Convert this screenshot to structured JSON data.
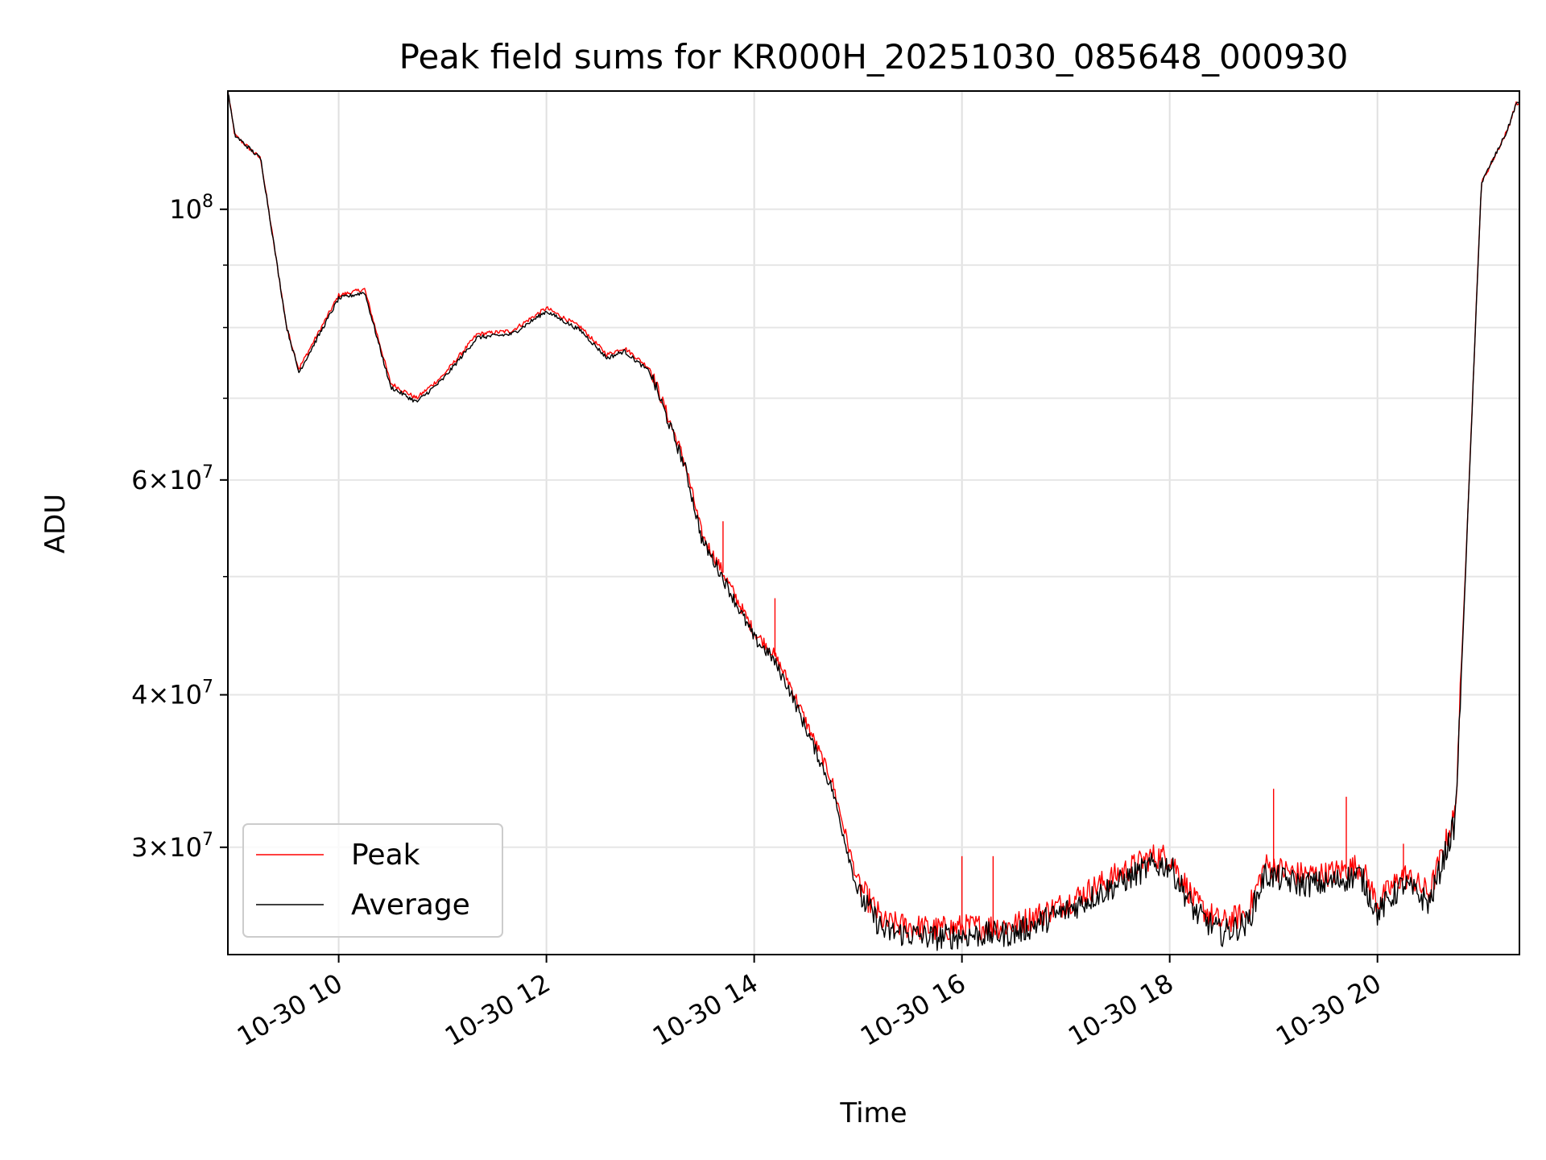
{
  "chart_data": {
    "type": "line",
    "title": "Peak field sums for KR000H_20251030_085648_000930",
    "xlabel": "Time",
    "ylabel": "ADU",
    "yscale": "log",
    "xlim": [
      "2025-10-30 08:56",
      "2025-10-30 21:22"
    ],
    "ylim": [
      24500000,
      125000000
    ],
    "grid": true,
    "legend_position": "lower-left",
    "x_ticks": [
      "10-30 10",
      "10-30 12",
      "10-30 14",
      "10-30 16",
      "10-30 18",
      "10-30 20"
    ],
    "y_ticks": [
      {
        "value": 30000000,
        "mantissa": "3",
        "exp": "7"
      },
      {
        "value": 40000000,
        "mantissa": "4",
        "exp": "7"
      },
      {
        "value": 60000000,
        "mantissa": "6",
        "exp": "7"
      },
      {
        "value": 100000000,
        "mantissa": "",
        "exp": "8"
      }
    ],
    "x": [
      "2025-10-30 08:56",
      "2025-10-30 09:00",
      "2025-10-30 09:15",
      "2025-10-30 09:30",
      "2025-10-30 09:37",
      "2025-10-30 10:00",
      "2025-10-30 10:15",
      "2025-10-30 10:30",
      "2025-10-30 10:45",
      "2025-10-30 11:00",
      "2025-10-30 11:20",
      "2025-10-30 11:40",
      "2025-10-30 12:00",
      "2025-10-30 12:20",
      "2025-10-30 12:35",
      "2025-10-30 12:45",
      "2025-10-30 13:00",
      "2025-10-30 13:20",
      "2025-10-30 13:30",
      "2025-10-30 13:40",
      "2025-10-30 14:00",
      "2025-10-30 14:10",
      "2025-10-30 14:20",
      "2025-10-30 14:30",
      "2025-10-30 14:45",
      "2025-10-30 15:00",
      "2025-10-30 15:15",
      "2025-10-30 15:45",
      "2025-10-30 16:00",
      "2025-10-30 16:30",
      "2025-10-30 17:00",
      "2025-10-30 17:30",
      "2025-10-30 17:50",
      "2025-10-30 18:00",
      "2025-10-30 18:15",
      "2025-10-30 18:30",
      "2025-10-30 18:45",
      "2025-10-30 18:55",
      "2025-10-30 19:15",
      "2025-10-30 19:30",
      "2025-10-30 19:50",
      "2025-10-30 20:00",
      "2025-10-30 20:15",
      "2025-10-30 20:30",
      "2025-10-30 20:45",
      "2025-10-30 21:00",
      "2025-10-30 21:15",
      "2025-10-30 21:20"
    ],
    "series": [
      {
        "name": "Peak",
        "color": "#ff0000",
        "values": [
          125000000,
          115000000,
          110000000,
          80000000,
          74000000,
          85000000,
          86000000,
          72000000,
          70000000,
          73000000,
          79000000,
          79500000,
          83000000,
          80000000,
          76000000,
          77000000,
          74000000,
          62000000,
          54000000,
          51000000,
          45000000,
          43500000,
          41000000,
          38000000,
          34000000,
          28000000,
          26000000,
          25700000,
          25800000,
          25900000,
          27000000,
          28500000,
          29500000,
          29500000,
          27000000,
          26000000,
          26500000,
          29000000,
          28500000,
          28500000,
          29000000,
          27000000,
          28500000,
          27500000,
          32000000,
          105000000,
          116000000,
          122000000
        ]
      },
      {
        "name": "Average",
        "color": "#000000",
        "values": [
          125000000,
          115000000,
          110000000,
          80000000,
          73500000,
          84500000,
          85500000,
          71500000,
          69500000,
          72500000,
          78500000,
          79000000,
          82500000,
          79500000,
          75500000,
          76500000,
          73500000,
          61500000,
          53500000,
          50500000,
          44500000,
          43000000,
          40500000,
          37500000,
          33500000,
          27500000,
          25600000,
          25300000,
          25400000,
          25500000,
          26600000,
          28000000,
          29000000,
          29000000,
          26500000,
          25500000,
          26000000,
          28500000,
          28000000,
          28000000,
          28500000,
          26500000,
          28000000,
          27000000,
          31500000,
          105000000,
          116000000,
          122000000
        ]
      }
    ],
    "spikes": [
      {
        "series": "Peak",
        "x": "2025-10-30 13:42",
        "value": 55500000
      },
      {
        "series": "Peak",
        "x": "2025-10-30 14:12",
        "value": 48000000
      },
      {
        "series": "Peak",
        "x": "2025-10-30 16:00",
        "value": 29500000
      },
      {
        "series": "Peak",
        "x": "2025-10-30 16:18",
        "value": 29500000
      },
      {
        "series": "Peak",
        "x": "2025-10-30 19:00",
        "value": 33500000
      },
      {
        "series": "Peak",
        "x": "2025-10-30 19:42",
        "value": 33000000
      },
      {
        "series": "Peak",
        "x": "2025-10-30 20:15",
        "value": 30200000
      }
    ]
  }
}
